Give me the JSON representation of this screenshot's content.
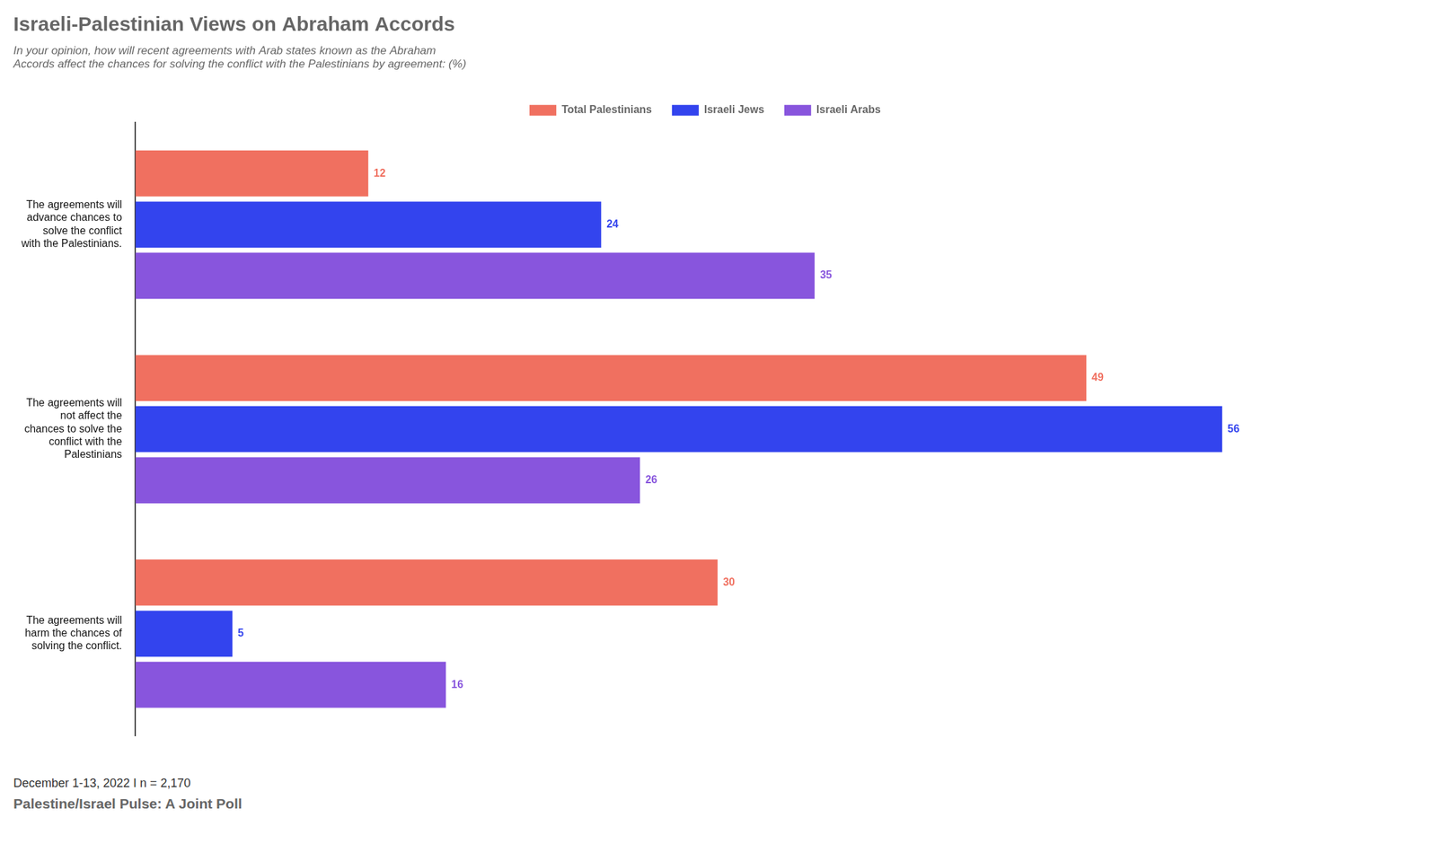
{
  "chart_data": {
    "type": "bar",
    "orientation": "horizontal",
    "title": "Israeli-Palestinian Views on Abraham Accords",
    "subtitle": "In your opinion, how will recent agreements with Arab states known as the Abraham\nAccords affect the chances for solving the conflict with the Palestinians by agreement: (%)",
    "categories": [
      "The agreements will\nadvance chances to\nsolve the conflict\nwith the Palestinians.",
      "The agreements will\nnot affect the\nchances to solve the\nconflict with the\nPalestinians",
      "The agreements will\nharm the chances of\nsolving the conflict."
    ],
    "series": [
      {
        "name": "Total Palestinians",
        "color": "#F07060",
        "values": [
          12,
          49,
          30
        ]
      },
      {
        "name": "Israeli Jews",
        "color": "#3344EE",
        "values": [
          24,
          56,
          5
        ]
      },
      {
        "name": "Israeli Arabs",
        "color": "#8855DD",
        "values": [
          35,
          26,
          16
        ]
      }
    ],
    "xlim": [
      0,
      65
    ],
    "data_labels": true,
    "tick_labels": "y",
    "grid": false,
    "legend": "top",
    "annotations": [
      "December 1-13, 2022 I n = 2,170",
      "Palestine/Israel Pulse: A Joint Poll"
    ]
  }
}
